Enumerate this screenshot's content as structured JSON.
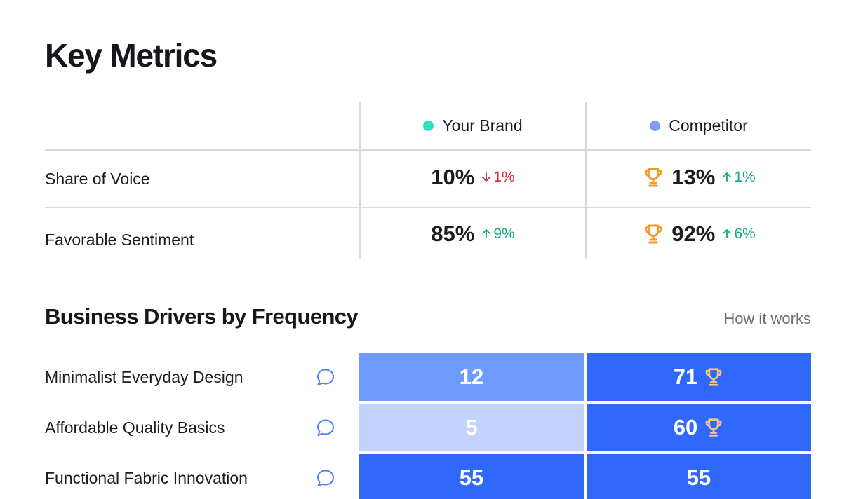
{
  "title": "Key Metrics",
  "metrics": {
    "columns": [
      {
        "label": "Your Brand",
        "color": "#2ee0c0"
      },
      {
        "label": "Competitor",
        "color": "#7b9cf7"
      }
    ],
    "rows": [
      {
        "label": "Share of Voice",
        "brand": {
          "value": "10%",
          "delta": "1%",
          "direction": "down",
          "winner": false
        },
        "competitor": {
          "value": "13%",
          "delta": "1%",
          "direction": "up",
          "winner": true
        }
      },
      {
        "label": "Favorable Sentiment",
        "brand": {
          "value": "85%",
          "delta": "9%",
          "direction": "up",
          "winner": false
        },
        "competitor": {
          "value": "92%",
          "delta": "6%",
          "direction": "up",
          "winner": true
        }
      }
    ]
  },
  "drivers": {
    "title": "Business Drivers by Frequency",
    "how_it_works": "How it works",
    "rows": [
      {
        "label": "Minimalist Everyday Design",
        "brand": "12",
        "competitor": "71",
        "winner": "competitor",
        "brand_color": "#6e9bfb",
        "competitor_color": "#2f68fb"
      },
      {
        "label": "Affordable Quality Basics",
        "brand": "5",
        "competitor": "60",
        "winner": "competitor",
        "brand_color": "#c2d4fd",
        "competitor_color": "#2f68fb"
      },
      {
        "label": "Functional Fabric Innovation",
        "brand": "55",
        "competitor": "55",
        "winner": "none",
        "brand_color": "#2f68fb",
        "competitor_color": "#2f68fb"
      }
    ]
  },
  "colors": {
    "trophy": "#ee9a25",
    "trophy_light": "#f5c77a",
    "up": "#15a87f",
    "down": "#d7283a",
    "comment_icon": "#4a7ff5"
  }
}
